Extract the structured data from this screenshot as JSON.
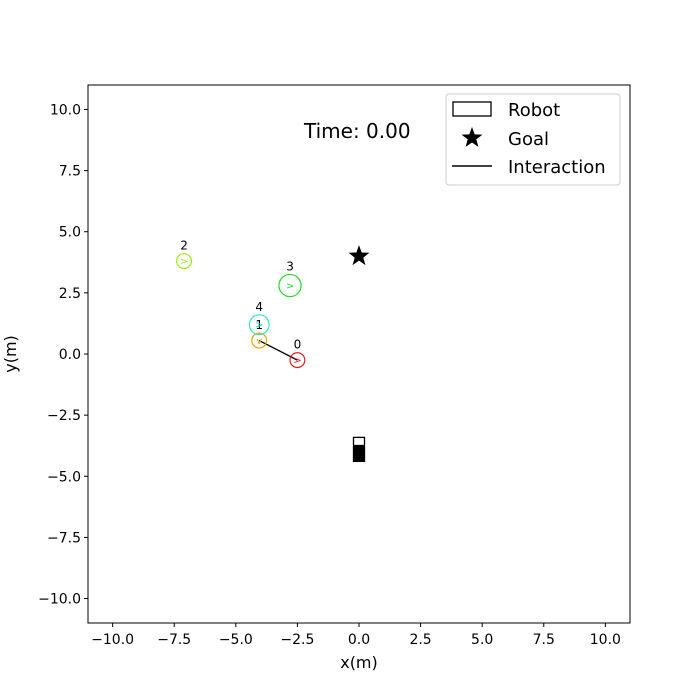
{
  "chart_data": {
    "type": "scatter",
    "xlabel": "x(m)",
    "ylabel": "y(m)",
    "xlim": [
      -11,
      11
    ],
    "ylim": [
      -11,
      11
    ],
    "xticks": [
      -10.0,
      -7.5,
      -5.0,
      -2.5,
      0.0,
      2.5,
      5.0,
      7.5,
      10.0
    ],
    "yticks": [
      -10.0,
      -7.5,
      -5.0,
      -2.5,
      0.0,
      2.5,
      5.0,
      7.5,
      10.0
    ],
    "xtick_labels": [
      "−10.0",
      "−7.5",
      "−5.0",
      "−2.5",
      "0.0",
      "2.5",
      "5.0",
      "7.5",
      "10.0"
    ],
    "ytick_labels": [
      "−10.0",
      "−7.5",
      "−5.0",
      "−2.5",
      "0.0",
      "2.5",
      "5.0",
      "7.5",
      "10.0"
    ],
    "grid": false,
    "time_label": "Time: 0.00",
    "legend": {
      "placement": "top-right",
      "entries": [
        "Robot",
        "Goal",
        "Interaction"
      ]
    },
    "robot": {
      "x": 0.0,
      "y": -3.9,
      "color": "#000000"
    },
    "goal": {
      "x": 0.0,
      "y": 4.0,
      "color": "#000000"
    },
    "agents": [
      {
        "id": "0",
        "x": -2.5,
        "y": -0.25,
        "radius": 0.3,
        "color": "#e31a1c",
        "heading": ">"
      },
      {
        "id": "1",
        "x": -4.05,
        "y": 0.55,
        "radius": 0.3,
        "color": "#e8a200",
        "heading": "v"
      },
      {
        "id": "2",
        "x": -7.1,
        "y": 3.8,
        "radius": 0.3,
        "color": "#99ee11",
        "heading": ">"
      },
      {
        "id": "3",
        "x": -2.8,
        "y": 2.8,
        "radius": 0.45,
        "color": "#22dd22",
        "heading": ">"
      },
      {
        "id": "4",
        "x": -4.05,
        "y": 1.2,
        "radius": 0.4,
        "color": "#2ee8c0",
        "heading": ">"
      }
    ],
    "interactions": [
      {
        "from": "1",
        "to": "0"
      }
    ]
  }
}
